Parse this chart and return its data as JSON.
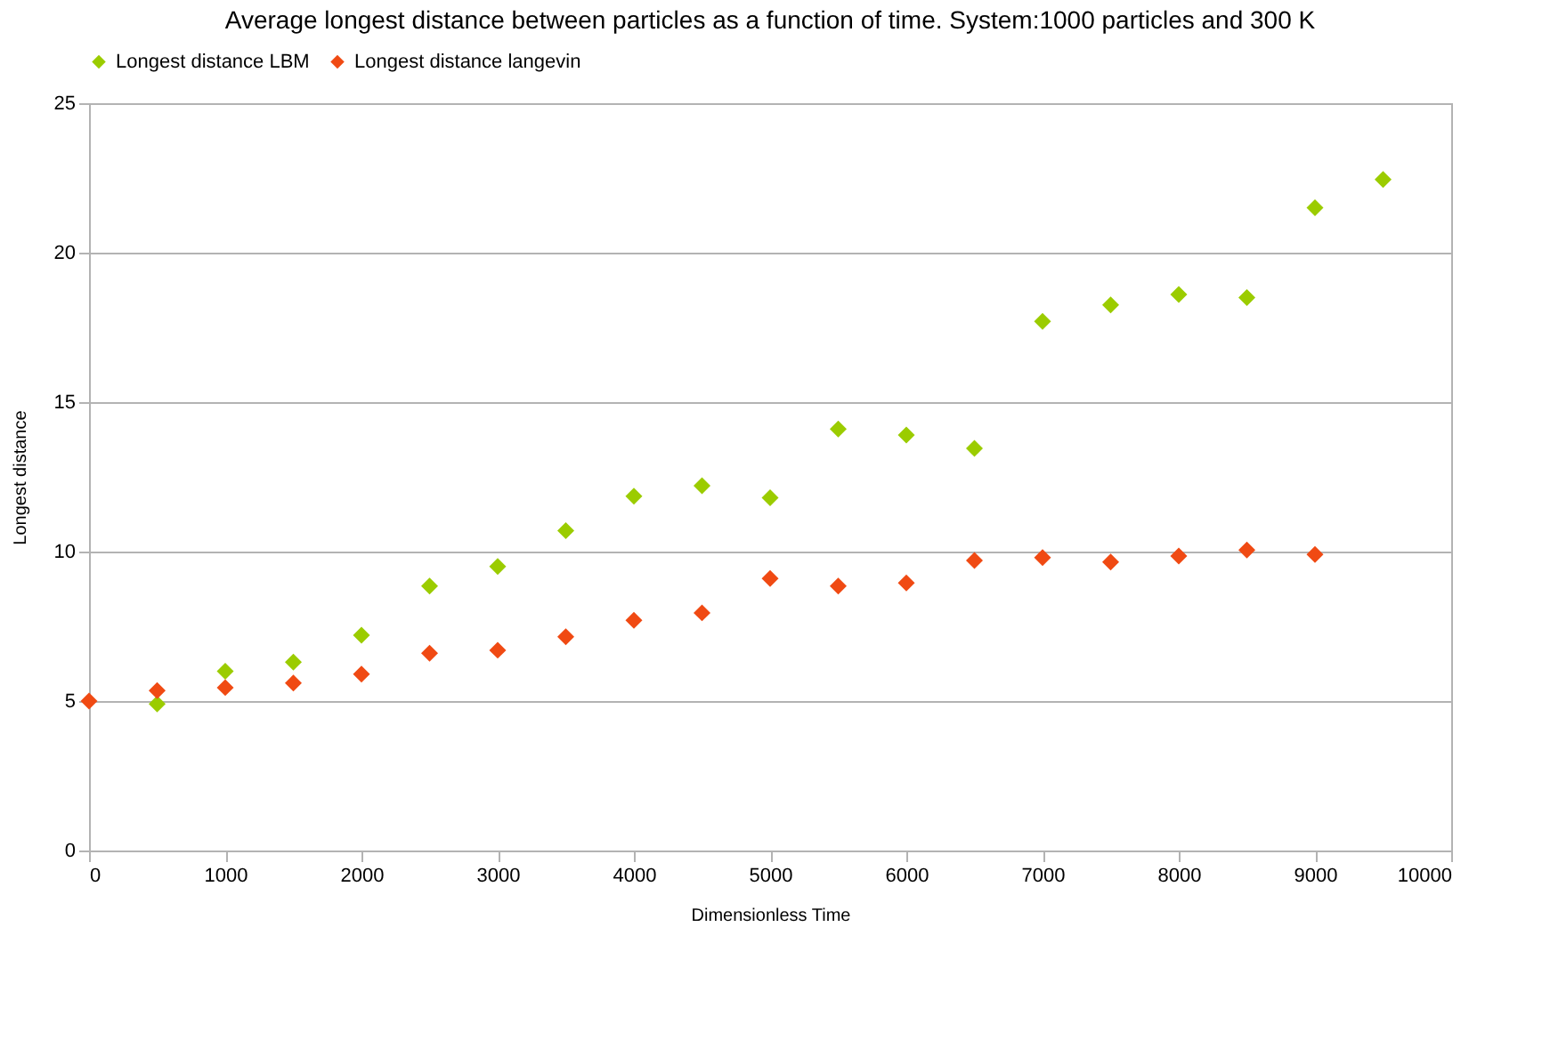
{
  "chart_data": {
    "type": "scatter",
    "title": "Average longest distance between particles as a function of time. System:1000 particles and 300 K",
    "xlabel": "Dimensionless Time",
    "ylabel": "Longest distance",
    "series": [
      {
        "name": "Longest distance LBM",
        "color": "#9bcc00",
        "x": [
          500,
          1000,
          1500,
          2000,
          2500,
          3000,
          3500,
          4000,
          4500,
          5000,
          5500,
          6000,
          6500,
          7000,
          7500,
          8000,
          8500,
          9000,
          9500
        ],
        "values": [
          4.9,
          6.0,
          6.3,
          7.2,
          8.85,
          9.5,
          10.7,
          11.85,
          12.2,
          11.8,
          14.1,
          13.9,
          13.45,
          17.7,
          18.25,
          18.6,
          18.5,
          21.5,
          22.45
        ]
      },
      {
        "name": "Longest distance langevin",
        "color": "#f04a13",
        "x": [
          0,
          500,
          1000,
          1500,
          2000,
          2500,
          3000,
          3500,
          4000,
          4500,
          5000,
          5500,
          6000,
          6500,
          7000,
          7500,
          8000,
          8500,
          9000
        ],
        "values": [
          5.0,
          5.35,
          5.45,
          5.6,
          5.9,
          6.6,
          6.7,
          7.15,
          7.7,
          7.95,
          9.1,
          8.85,
          8.95,
          9.7,
          9.8,
          9.65,
          9.85,
          10.05,
          9.9
        ]
      }
    ],
    "xlim": [
      0,
      10000
    ],
    "xticks": [
      0,
      1000,
      2000,
      3000,
      4000,
      5000,
      6000,
      7000,
      8000,
      9000,
      10000
    ],
    "ylim": [
      0,
      25
    ],
    "yticks": [
      0,
      5,
      10,
      15,
      20,
      25
    ],
    "grid": "y",
    "legend": "top",
    "marker": "diamond"
  }
}
